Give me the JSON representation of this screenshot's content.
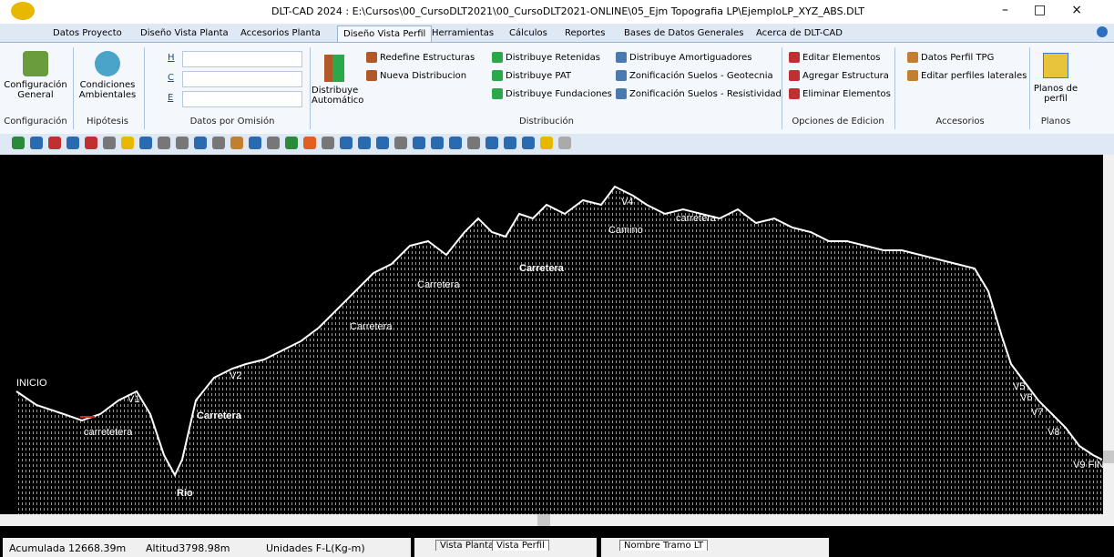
{
  "window": {
    "title": "DLT-CAD 2024 : E:\\Cursos\\00_CursoDLT2021\\00_CursoDLT2021-ONLINE\\05_Ejm Topografia LP\\EjemploLP_XYZ_ABS.DLT"
  },
  "menu": {
    "tabs": [
      "Datos Proyecto",
      "Diseño Vista Planta",
      "Accesorios Planta",
      "Diseño Vista Perfil",
      "Herramientas",
      "Cálculos",
      "Reportes",
      "Bases de Datos Generales",
      "Acerca de DLT-CAD"
    ]
  },
  "ribbon": {
    "configuracion": {
      "button": "Configuración General",
      "group": "Configuración"
    },
    "hipotesis": {
      "button": "Condiciones Ambientales",
      "group": "Hipótesis"
    },
    "datos": {
      "fields": [
        "H",
        "C",
        "E"
      ],
      "group": "Datos por Omisión"
    },
    "distribucion": {
      "auto": "Distribuye Automático",
      "items": [
        "Redefine Estructuras",
        "Nueva Distribucion"
      ],
      "group": "Distribución"
    },
    "distribuye": {
      "items": [
        "Distribuye Retenidas",
        "Distribuye PAT",
        "Distribuye Fundaciones"
      ]
    },
    "zonificacion": {
      "items": [
        "Distribuye Amortiguadores",
        "Zonificación Suelos - Geotecnia",
        "Zonificación Suelos - Resistividad"
      ]
    },
    "edicion": {
      "items": [
        "Editar Elementos",
        "Agregar Estructura",
        "Eliminar Elementos"
      ],
      "group": "Opciones de Edicion"
    },
    "accesorios": {
      "items": [
        "Datos Perfil TPG",
        "Editar perfiles laterales"
      ],
      "group": "Accesorios"
    },
    "planos": {
      "button": "Planos de perfil",
      "group": "Planos"
    }
  },
  "canvas": {
    "labels": [
      "INICIO",
      "V1",
      "carretetera",
      "Rio",
      "V2",
      "Carretera",
      "Carretera",
      "Carretera",
      "Carretera",
      "Camino",
      "carretera",
      "V4",
      "V5",
      "V6",
      "V7",
      "V8",
      "V9 FIN"
    ]
  },
  "status": {
    "acumulada": "Acumulada 12668.39m",
    "altitud": "Altitud3798.98m",
    "unidades": "Unidades F-L(Kg-m)",
    "view_tabs": [
      "Vista Planta",
      "Vista Perfil"
    ],
    "tramo": "Nombre Tramo LT"
  }
}
